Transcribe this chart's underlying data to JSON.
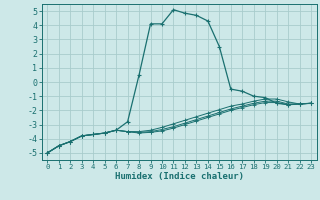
{
  "title": "",
  "xlabel": "Humidex (Indice chaleur)",
  "ylabel": "",
  "bg_color": "#cde8e8",
  "grid_color": "#a8cccc",
  "line_color": "#1a7070",
  "xlim": [
    -0.5,
    23.5
  ],
  "ylim": [
    -5.5,
    5.5
  ],
  "xticks": [
    0,
    1,
    2,
    3,
    4,
    5,
    6,
    7,
    8,
    9,
    10,
    11,
    12,
    13,
    14,
    15,
    16,
    17,
    18,
    19,
    20,
    21,
    22,
    23
  ],
  "yticks": [
    -5,
    -4,
    -3,
    -2,
    -1,
    0,
    1,
    2,
    3,
    4,
    5
  ],
  "x": [
    0,
    1,
    2,
    3,
    4,
    5,
    6,
    7,
    8,
    9,
    10,
    11,
    12,
    13,
    14,
    15,
    16,
    17,
    18,
    19,
    20,
    21,
    22,
    23
  ],
  "series": [
    [
      -5.0,
      -4.5,
      -4.2,
      -3.8,
      -3.7,
      -3.6,
      -3.4,
      -2.8,
      0.5,
      4.1,
      4.1,
      5.1,
      4.85,
      4.7,
      4.3,
      2.5,
      -0.5,
      -0.65,
      -1.0,
      -1.1,
      -1.5,
      -1.6,
      -1.55,
      -1.5
    ],
    [
      -5.0,
      -4.5,
      -4.2,
      -3.8,
      -3.7,
      -3.6,
      -3.4,
      -3.5,
      -3.5,
      -3.4,
      -3.2,
      -2.95,
      -2.7,
      -2.45,
      -2.2,
      -1.95,
      -1.7,
      -1.55,
      -1.35,
      -1.2,
      -1.2,
      -1.4,
      -1.55,
      -1.5
    ],
    [
      -5.0,
      -4.5,
      -4.2,
      -3.8,
      -3.7,
      -3.6,
      -3.4,
      -3.5,
      -3.55,
      -3.5,
      -3.35,
      -3.15,
      -2.9,
      -2.65,
      -2.4,
      -2.15,
      -1.9,
      -1.7,
      -1.5,
      -1.35,
      -1.35,
      -1.55,
      -1.55,
      -1.5
    ],
    [
      -5.0,
      -4.5,
      -4.2,
      -3.8,
      -3.7,
      -3.6,
      -3.4,
      -3.5,
      -3.6,
      -3.55,
      -3.45,
      -3.25,
      -3.0,
      -2.75,
      -2.5,
      -2.25,
      -2.0,
      -1.8,
      -1.6,
      -1.45,
      -1.45,
      -1.6,
      -1.55,
      -1.5
    ]
  ]
}
